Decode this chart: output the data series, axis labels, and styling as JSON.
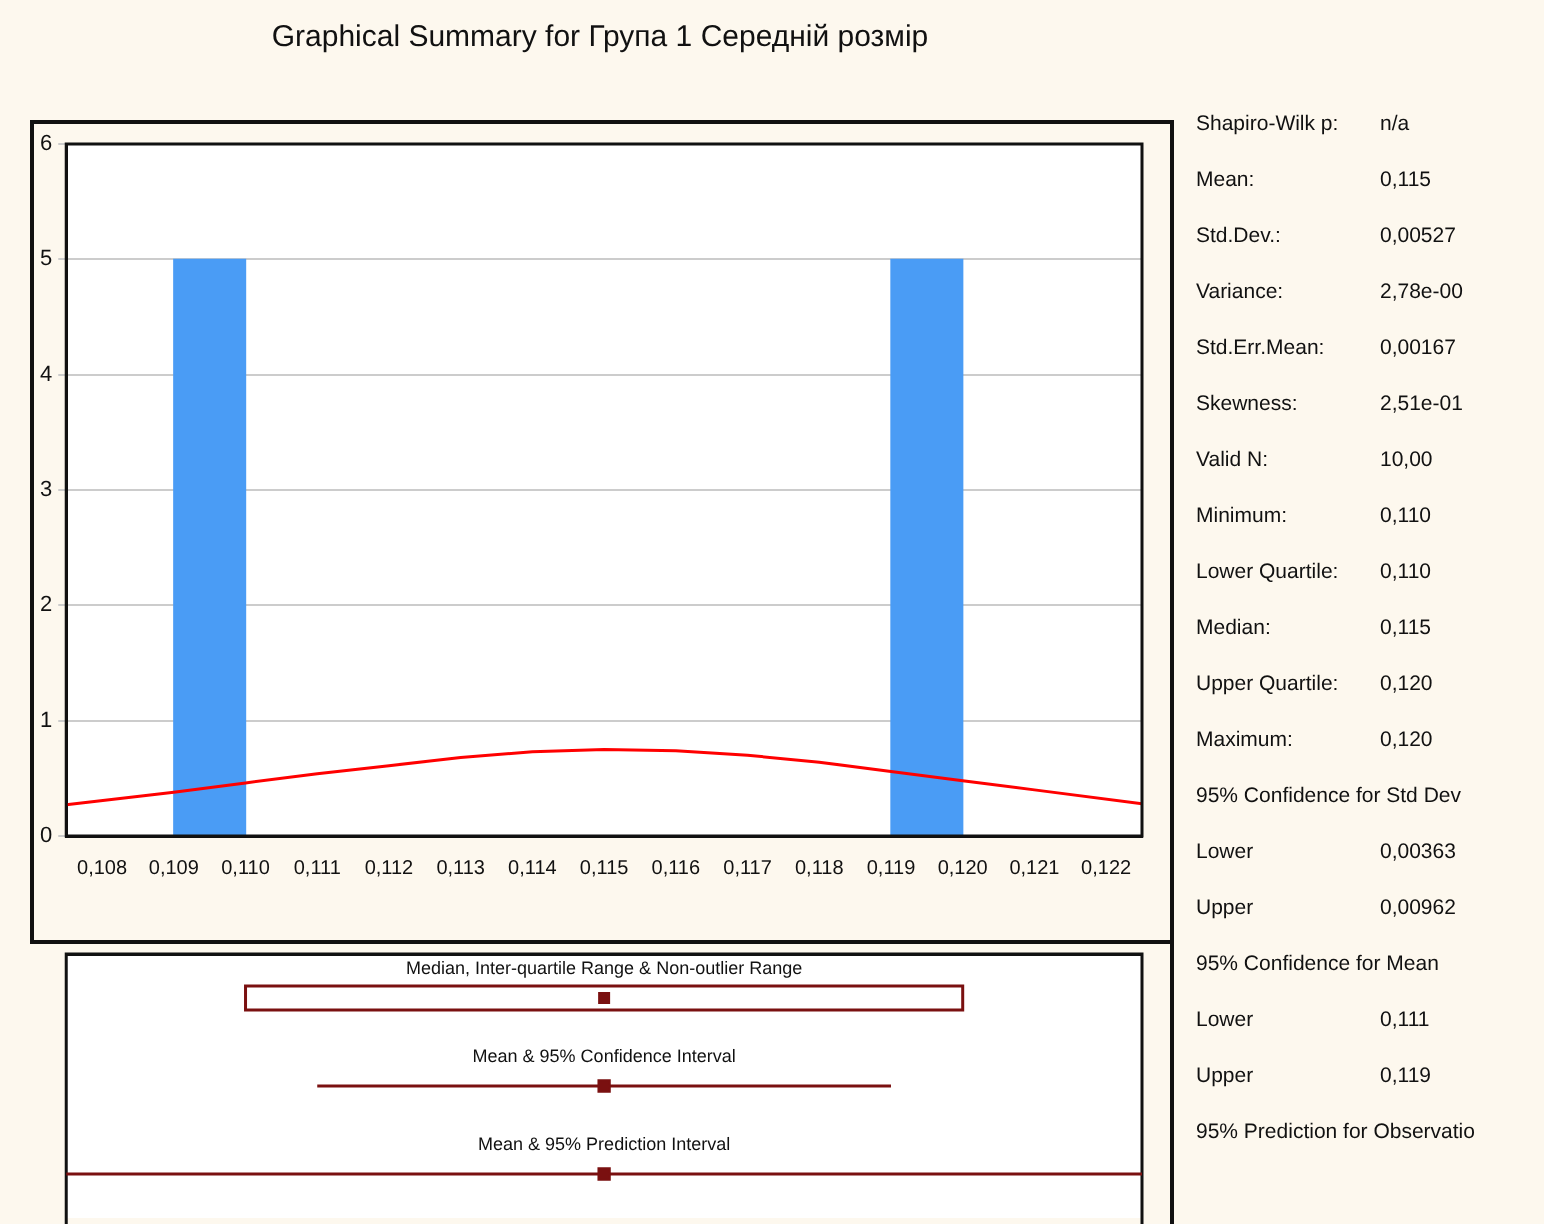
{
  "chart_data": [
    {
      "type": "histogram",
      "title": "Graphical Summary for Група 1 Середній розмір",
      "bins": [
        0.109,
        0.11,
        0.111,
        0.112,
        0.113,
        0.114,
        0.115,
        0.116,
        0.117,
        0.118,
        0.119,
        0.12
      ],
      "values": [
        5,
        0,
        0,
        0,
        0,
        0,
        0,
        0,
        0,
        0,
        5
      ],
      "color": "#4a9cf5",
      "series": [
        {
          "type": "line",
          "color": "#ff0000",
          "x": [
            0.1075,
            0.109,
            0.11,
            0.111,
            0.112,
            0.113,
            0.114,
            0.115,
            0.116,
            0.117,
            0.118,
            0.119,
            0.12,
            0.121,
            0.1225
          ],
          "values": [
            0.27,
            0.38,
            0.46,
            0.54,
            0.61,
            0.68,
            0.73,
            0.75,
            0.74,
            0.7,
            0.64,
            0.56,
            0.48,
            0.4,
            0.28
          ]
        }
      ],
      "xlim": [
        0.1075,
        0.1225
      ],
      "xticks": [
        {
          "value": 0.108,
          "label": "0,108"
        },
        {
          "value": 0.109,
          "label": "0,109"
        },
        {
          "value": 0.11,
          "label": "0,110"
        },
        {
          "value": 0.111,
          "label": "0,111"
        },
        {
          "value": 0.112,
          "label": "0,112"
        },
        {
          "value": 0.113,
          "label": "0,113"
        },
        {
          "value": 0.114,
          "label": "0,114"
        },
        {
          "value": 0.115,
          "label": "0,115"
        },
        {
          "value": 0.116,
          "label": "0,116"
        },
        {
          "value": 0.117,
          "label": "0,117"
        },
        {
          "value": 0.118,
          "label": "0,118"
        },
        {
          "value": 0.119,
          "label": "0,119"
        },
        {
          "value": 0.12,
          "label": "0,120"
        },
        {
          "value": 0.121,
          "label": "0,121"
        },
        {
          "value": 0.122,
          "label": "0,122"
        }
      ],
      "ylim": [
        0,
        6
      ],
      "yticks": [
        0,
        1,
        2,
        3,
        4,
        5,
        6
      ],
      "grid": "y",
      "marker": "none"
    },
    {
      "type": "box",
      "orientation": "horizontal",
      "tick_labels": false,
      "categories": [
        "Median, Inter-quartile Range & Non-outlier Range",
        "Mean & 95% Confidence Interval",
        "Mean & 95% Prediction Interval"
      ],
      "xlim": [
        0.1075,
        0.1225
      ],
      "series": [
        {
          "type": "box",
          "color": "#7a1010",
          "boxes": [
            {
              "low": 0.11,
              "q1": 0.11,
              "median": 0.115,
              "q3": 0.12,
              "high": 0.12
            },
            null,
            null
          ]
        },
        {
          "type": "scatter",
          "color": "#7a1010",
          "marker": "square",
          "values": [
            null,
            0.115,
            0.115
          ],
          "errors": [
            null,
            [
              0.111,
              0.119
            ],
            [
              0.1075,
              0.1225
            ]
          ]
        }
      ]
    },
    {
      "type": "other",
      "annotations": [
        "Shapiro-Wilk p:\tn/a",
        "Mean:\t0,115",
        "Std.Dev.:\t0,00527",
        "Variance:\t2,78e-00",
        "Std.Err.Mean:\t0,00167",
        "Skewness:\t2,51e-01",
        "Valid N:\t10,00",
        "Minimum:\t0,110",
        "Lower Quartile:\t0,110",
        "Median:\t0,115",
        "Upper Quartile:\t0,120",
        "Maximum:\t0,120",
        "95% Confidence for Std Dev",
        "Lower\t0,00363",
        "Upper\t0,00962",
        "95% Confidence for Mean",
        "Lower\t0,111",
        "Upper\t0,119",
        "95% Prediction for Observatio"
      ]
    }
  ]
}
